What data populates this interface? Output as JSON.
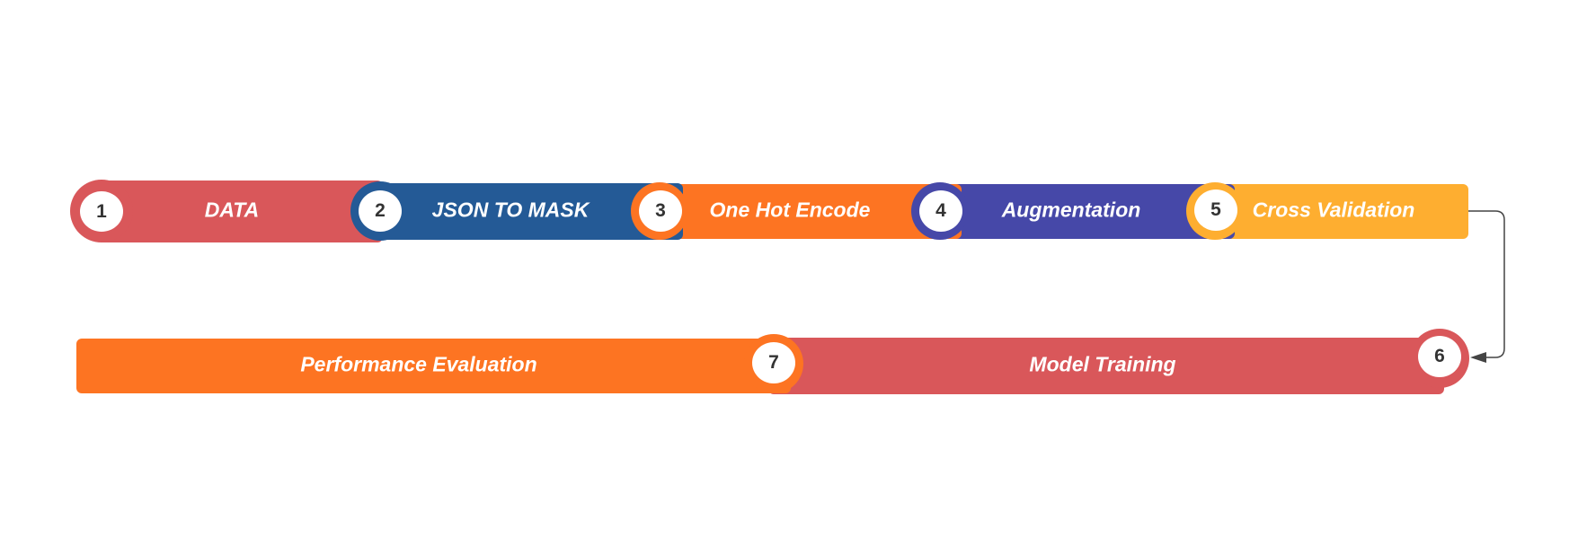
{
  "steps": [
    {
      "number": "1",
      "label": "DATA",
      "color": "#d9575a"
    },
    {
      "number": "2",
      "label": "JSON TO MASK",
      "color": "#245a96"
    },
    {
      "number": "3",
      "label": "One Hot Encode",
      "color": "#fd7422"
    },
    {
      "number": "4",
      "label": "Augmentation",
      "color": "#4648a8"
    },
    {
      "number": "5",
      "label": "Cross Validation",
      "color": "#feae30"
    },
    {
      "number": "6",
      "label": "Model Training",
      "color": "#d9575a"
    },
    {
      "number": "7",
      "label": "Performance Evaluation",
      "color": "#fd7422"
    }
  ],
  "connector": {
    "color": "#444444"
  }
}
